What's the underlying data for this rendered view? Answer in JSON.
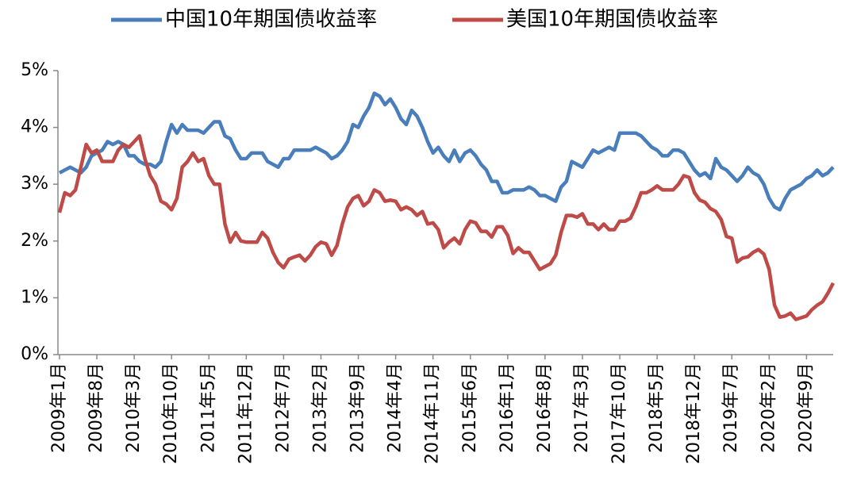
{
  "chart_data": {
    "type": "line",
    "categories": [
      "2009年1月",
      null,
      null,
      null,
      null,
      null,
      null,
      "2009年8月",
      null,
      null,
      null,
      null,
      null,
      null,
      "2010年3月",
      null,
      null,
      null,
      null,
      null,
      null,
      "2010年10月",
      null,
      null,
      null,
      null,
      null,
      null,
      "2011年5月",
      null,
      null,
      null,
      null,
      null,
      null,
      "2011年12月",
      null,
      null,
      null,
      null,
      null,
      null,
      "2012年7月",
      null,
      null,
      null,
      null,
      null,
      null,
      "2013年2月",
      null,
      null,
      null,
      null,
      null,
      null,
      "2013年9月",
      null,
      null,
      null,
      null,
      null,
      null,
      "2014年4月",
      null,
      null,
      null,
      null,
      null,
      null,
      "2014年11月",
      null,
      null,
      null,
      null,
      null,
      null,
      "2015年6月",
      null,
      null,
      null,
      null,
      null,
      null,
      "2016年1月",
      null,
      null,
      null,
      null,
      null,
      null,
      "2016年8月",
      null,
      null,
      null,
      null,
      null,
      null,
      "2017年3月",
      null,
      null,
      null,
      null,
      null,
      null,
      "2017年10月",
      null,
      null,
      null,
      null,
      null,
      null,
      "2018年5月",
      null,
      null,
      null,
      null,
      null,
      null,
      "2018年12月",
      null,
      null,
      null,
      null,
      null,
      null,
      "2019年7月",
      null,
      null,
      null,
      null,
      null,
      null,
      "2020年2月",
      null,
      null,
      null,
      null,
      null,
      null,
      "2020年9月",
      null,
      null,
      null,
      null,
      null
    ],
    "series": [
      {
        "name": "中国10年期国债收益率",
        "color": "#4a7ebb",
        "values": [
          3.2,
          3.25,
          3.3,
          3.25,
          3.2,
          3.3,
          3.5,
          3.55,
          3.6,
          3.75,
          3.7,
          3.75,
          3.7,
          3.5,
          3.5,
          3.4,
          3.35,
          3.35,
          3.3,
          3.4,
          3.75,
          4.05,
          3.9,
          4.05,
          3.95,
          3.95,
          3.95,
          3.9,
          4.0,
          4.1,
          4.1,
          3.85,
          3.8,
          3.6,
          3.45,
          3.45,
          3.55,
          3.55,
          3.55,
          3.4,
          3.35,
          3.3,
          3.45,
          3.45,
          3.6,
          3.6,
          3.6,
          3.6,
          3.65,
          3.6,
          3.55,
          3.45,
          3.5,
          3.6,
          3.75,
          4.05,
          4.0,
          4.2,
          4.35,
          4.6,
          4.55,
          4.4,
          4.5,
          4.35,
          4.15,
          4.05,
          4.3,
          4.2,
          4.0,
          3.75,
          3.55,
          3.65,
          3.5,
          3.4,
          3.6,
          3.4,
          3.55,
          3.6,
          3.5,
          3.35,
          3.25,
          3.05,
          3.05,
          2.85,
          2.85,
          2.9,
          2.9,
          2.9,
          2.95,
          2.9,
          2.8,
          2.8,
          2.75,
          2.7,
          2.95,
          3.05,
          3.4,
          3.35,
          3.3,
          3.45,
          3.6,
          3.55,
          3.6,
          3.65,
          3.6,
          3.9,
          3.9,
          3.9,
          3.9,
          3.85,
          3.75,
          3.65,
          3.6,
          3.5,
          3.5,
          3.6,
          3.6,
          3.55,
          3.4,
          3.25,
          3.15,
          3.2,
          3.1,
          3.45,
          3.3,
          3.25,
          3.15,
          3.05,
          3.15,
          3.3,
          3.2,
          3.15,
          3.0,
          2.75,
          2.6,
          2.55,
          2.75,
          2.9,
          2.95,
          3.0,
          3.1,
          3.15,
          3.25,
          3.15,
          3.2,
          3.3
        ]
      },
      {
        "name": "美国10年期国债收益率",
        "color": "#be4b48",
        "values": [
          2.5,
          2.85,
          2.8,
          2.9,
          3.3,
          3.7,
          3.55,
          3.6,
          3.4,
          3.4,
          3.4,
          3.6,
          3.7,
          3.65,
          3.75,
          3.85,
          3.45,
          3.15,
          3.0,
          2.7,
          2.65,
          2.55,
          2.75,
          3.3,
          3.4,
          3.55,
          3.4,
          3.45,
          3.15,
          3.0,
          3.0,
          2.3,
          1.98,
          2.15,
          2.0,
          1.98,
          1.98,
          1.98,
          2.15,
          2.05,
          1.8,
          1.62,
          1.53,
          1.68,
          1.72,
          1.75,
          1.65,
          1.75,
          1.9,
          1.98,
          1.95,
          1.75,
          1.92,
          2.3,
          2.6,
          2.75,
          2.8,
          2.62,
          2.7,
          2.9,
          2.85,
          2.7,
          2.72,
          2.7,
          2.55,
          2.6,
          2.55,
          2.45,
          2.52,
          2.3,
          2.32,
          2.2,
          1.88,
          1.98,
          2.05,
          1.95,
          2.2,
          2.35,
          2.32,
          2.17,
          2.17,
          2.07,
          2.25,
          2.25,
          2.1,
          1.78,
          1.88,
          1.8,
          1.8,
          1.65,
          1.5,
          1.55,
          1.6,
          1.75,
          2.15,
          2.45,
          2.45,
          2.42,
          2.48,
          2.3,
          2.3,
          2.2,
          2.3,
          2.2,
          2.2,
          2.35,
          2.35,
          2.4,
          2.6,
          2.85,
          2.85,
          2.9,
          2.97,
          2.9,
          2.9,
          2.9,
          3.0,
          3.15,
          3.12,
          2.85,
          2.72,
          2.68,
          2.57,
          2.52,
          2.38,
          2.08,
          2.05,
          1.63,
          1.7,
          1.72,
          1.8,
          1.85,
          1.77,
          1.5,
          0.87,
          0.66,
          0.68,
          0.73,
          0.62,
          0.65,
          0.68,
          0.79,
          0.87,
          0.93,
          1.08,
          1.26
        ]
      }
    ],
    "ylim": [
      0,
      5
    ],
    "yticks": [
      {
        "value": 0,
        "label": "0%"
      },
      {
        "value": 1,
        "label": "1%"
      },
      {
        "value": 2,
        "label": "2%"
      },
      {
        "value": 3,
        "label": "3%"
      },
      {
        "value": 4,
        "label": "4%"
      },
      {
        "value": 5,
        "label": "5%"
      }
    ],
    "legend": "top"
  }
}
